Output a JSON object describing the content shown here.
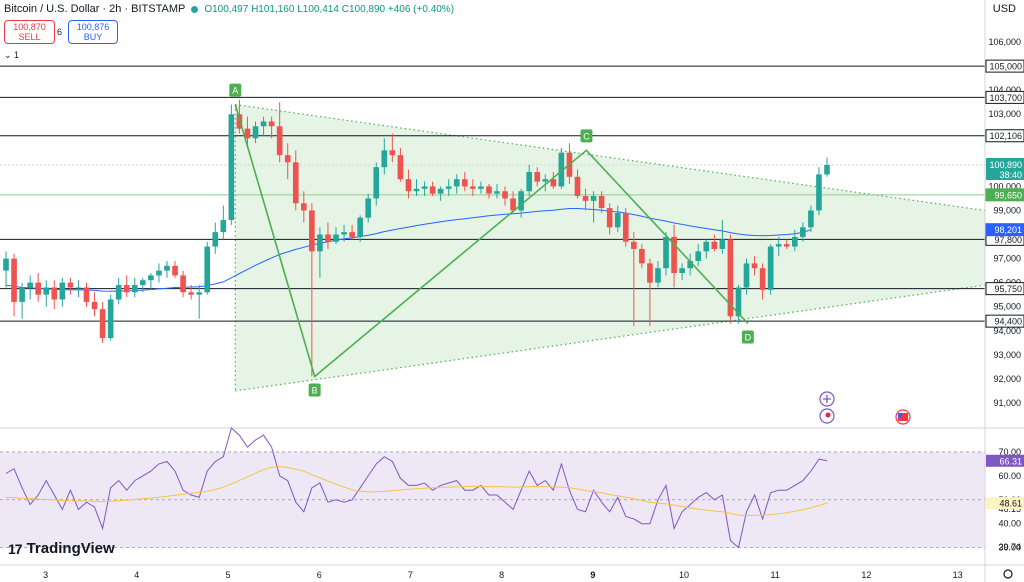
{
  "header": {
    "symbol": "Bitcoin / U.S. Dollar · 2h · BITSTAMP",
    "ohlc_open": "O100,497",
    "ohlc_high": "H101,160",
    "ohlc_low": "L100,414",
    "ohlc_close": "C100,890",
    "ohlc_change": "+406 (+0.40%)"
  },
  "trade": {
    "sell_price": "100,870",
    "sell_label": "SELL",
    "spread": "6",
    "buy_price": "100,876",
    "buy_label": "BUY",
    "collapse_label": "⌄ 1"
  },
  "currency": "USD",
  "brand": "TradingView",
  "colors": {
    "up": "#26a69a",
    "down": "#ef5350",
    "triangle_fill": "#e2f3e2",
    "pattern": "#4caf50",
    "ma": "#2962ff",
    "rsi": "#7e57c2",
    "rsi_ma": "#f5c542",
    "rsi_band": "#ede7f6"
  },
  "chart_data": [
    {
      "type": "candlestick",
      "title": "Bitcoin / U.S. Dollar · 2h · BITSTAMP",
      "ylim": [
        90000,
        107000
      ],
      "xlim": [
        2.5,
        13.3
      ],
      "y_ticks": [
        91000,
        92000,
        93000,
        94000,
        95000,
        96000,
        97000,
        98000,
        99000,
        100000,
        101000,
        102000,
        103000,
        104000,
        106000
      ],
      "y_tick_labels": [
        "91,000",
        "92,000",
        "93,000",
        "94,000",
        "95,000",
        "96,000",
        "97,000",
        "98,000",
        "99,000",
        "100,000",
        "101,000",
        "102,000",
        "103,000",
        "104,000",
        "106,000"
      ],
      "x_ticks": [
        3,
        4,
        5,
        6,
        7,
        8,
        9,
        10,
        11,
        12,
        13
      ],
      "x_tick_labels": [
        "3",
        "4",
        "5",
        "6",
        "7",
        "8",
        "9",
        "10",
        "11",
        "12",
        "13"
      ],
      "x_bold_ticks": [
        9
      ],
      "candles": [
        [
          96500,
          97300,
          95800,
          97000
        ],
        [
          97000,
          97200,
          94600,
          95200
        ],
        [
          95200,
          96000,
          94500,
          95800
        ],
        [
          95800,
          96300,
          95300,
          96000
        ],
        [
          96000,
          96400,
          95200,
          95500
        ],
        [
          95500,
          96100,
          95000,
          95800
        ],
        [
          95800,
          96100,
          94900,
          95300
        ],
        [
          95300,
          96200,
          95000,
          96000
        ],
        [
          96000,
          96200,
          95500,
          95800
        ],
        [
          95800,
          96100,
          95400,
          95800
        ],
        [
          95800,
          96000,
          95000,
          95200
        ],
        [
          95200,
          95600,
          94600,
          94900
        ],
        [
          94900,
          95200,
          93500,
          93700
        ],
        [
          93700,
          95500,
          93600,
          95300
        ],
        [
          95300,
          96200,
          95100,
          95900
        ],
        [
          95900,
          96300,
          95400,
          95600
        ],
        [
          95600,
          96200,
          95400,
          95900
        ],
        [
          95900,
          96200,
          95600,
          96100
        ],
        [
          96100,
          96400,
          95700,
          96300
        ],
        [
          96300,
          96800,
          96000,
          96500
        ],
        [
          96500,
          96900,
          96200,
          96700
        ],
        [
          96700,
          96900,
          96200,
          96300
        ],
        [
          96300,
          96500,
          95400,
          95600
        ],
        [
          95600,
          95900,
          95300,
          95500
        ],
        [
          95500,
          95900,
          94500,
          95600
        ],
        [
          95600,
          97700,
          95500,
          97500
        ],
        [
          97500,
          98500,
          97200,
          98100
        ],
        [
          98100,
          99200,
          97800,
          98600
        ],
        [
          98600,
          103400,
          98400,
          103000
        ],
        [
          103000,
          103600,
          102200,
          102400
        ],
        [
          102400,
          102900,
          101600,
          102000
        ],
        [
          102000,
          102700,
          101800,
          102500
        ],
        [
          102500,
          102900,
          102100,
          102700
        ],
        [
          102700,
          102900,
          102000,
          102500
        ],
        [
          102500,
          103500,
          101000,
          101300
        ],
        [
          101300,
          101800,
          100300,
          101000
        ],
        [
          101000,
          101500,
          99000,
          99300
        ],
        [
          99300,
          99800,
          98500,
          99000
        ],
        [
          99000,
          99300,
          92100,
          97300
        ],
        [
          97300,
          98300,
          96200,
          98000
        ],
        [
          98000,
          98500,
          97400,
          97700
        ],
        [
          97700,
          98300,
          97600,
          98000
        ],
        [
          98000,
          98400,
          97700,
          98100
        ],
        [
          98100,
          98400,
          97800,
          97900
        ],
        [
          97900,
          98800,
          97700,
          98700
        ],
        [
          98700,
          99700,
          98500,
          99500
        ],
        [
          99500,
          101000,
          99200,
          100800
        ],
        [
          100800,
          102000,
          100500,
          101500
        ],
        [
          101500,
          102200,
          101000,
          101300
        ],
        [
          101300,
          101600,
          100200,
          100300
        ],
        [
          100300,
          100700,
          99500,
          99800
        ],
        [
          99800,
          100300,
          99600,
          99900
        ],
        [
          99900,
          100200,
          99600,
          100000
        ],
        [
          100000,
          100200,
          99600,
          99700
        ],
        [
          99700,
          100000,
          99400,
          99900
        ],
        [
          99900,
          100300,
          99600,
          100000
        ],
        [
          100000,
          100500,
          99700,
          100300
        ],
        [
          100300,
          100600,
          99800,
          100000
        ],
        [
          100000,
          100300,
          99600,
          99900
        ],
        [
          99900,
          100200,
          99700,
          100000
        ],
        [
          100000,
          100100,
          99500,
          99700
        ],
        [
          99700,
          100100,
          99500,
          99800
        ],
        [
          99800,
          100000,
          99200,
          99500
        ],
        [
          99500,
          99800,
          98900,
          99000
        ],
        [
          99000,
          99900,
          98700,
          99800
        ],
        [
          99800,
          100900,
          99600,
          100600
        ],
        [
          100600,
          100800,
          100000,
          100200
        ],
        [
          100200,
          100500,
          99800,
          100300
        ],
        [
          100300,
          100600,
          99900,
          100000
        ],
        [
          100000,
          101600,
          99900,
          101400
        ],
        [
          101400,
          101800,
          100100,
          100400
        ],
        [
          100400,
          100700,
          99500,
          99600
        ],
        [
          99600,
          99900,
          99000,
          99400
        ],
        [
          99400,
          99800,
          98500,
          99600
        ],
        [
          99600,
          99800,
          98900,
          99100
        ],
        [
          99100,
          99300,
          98000,
          98300
        ],
        [
          98300,
          99200,
          98100,
          98900
        ],
        [
          98900,
          99100,
          97500,
          97700
        ],
        [
          97700,
          98100,
          94200,
          97400
        ],
        [
          97400,
          97600,
          96600,
          96800
        ],
        [
          96800,
          97000,
          94200,
          96000
        ],
        [
          96000,
          96900,
          95800,
          96600
        ],
        [
          96600,
          98100,
          96300,
          97900
        ],
        [
          97900,
          98400,
          95800,
          96400
        ],
        [
          96400,
          96800,
          96100,
          96600
        ],
        [
          96600,
          97200,
          96300,
          96900
        ],
        [
          96900,
          97600,
          96700,
          97300
        ],
        [
          97300,
          97800,
          97000,
          97700
        ],
        [
          97700,
          98000,
          97300,
          97400
        ],
        [
          97400,
          98600,
          97200,
          97800
        ],
        [
          97800,
          98000,
          94300,
          94600
        ],
        [
          94600,
          95900,
          94300,
          95800
        ],
        [
          95800,
          97000,
          95500,
          96800
        ],
        [
          96800,
          97100,
          96300,
          96600
        ],
        [
          96600,
          96800,
          95300,
          95700
        ],
        [
          95700,
          97600,
          95500,
          97500
        ],
        [
          97500,
          97900,
          97100,
          97600
        ],
        [
          97600,
          97800,
          97400,
          97500
        ],
        [
          97500,
          98200,
          97300,
          97900
        ],
        [
          97900,
          98500,
          97700,
          98300
        ],
        [
          98300,
          99200,
          98100,
          99000
        ],
        [
          99000,
          100800,
          98800,
          100500
        ],
        [
          100500,
          101200,
          100400,
          100890
        ]
      ],
      "ma_values": [
        95900,
        95850,
        95800,
        95780,
        95760,
        95740,
        95720,
        95710,
        95700,
        95700,
        95690,
        95680,
        95650,
        95640,
        95650,
        95660,
        95670,
        95690,
        95710,
        95740,
        95770,
        95800,
        95810,
        95820,
        95830,
        95880,
        95950,
        96030,
        96200,
        96380,
        96550,
        96720,
        96880,
        97030,
        97170,
        97280,
        97380,
        97470,
        97560,
        97640,
        97700,
        97760,
        97820,
        97870,
        97920,
        97970,
        98040,
        98120,
        98190,
        98250,
        98310,
        98370,
        98430,
        98480,
        98530,
        98580,
        98620,
        98660,
        98700,
        98740,
        98780,
        98810,
        98840,
        98860,
        98890,
        98930,
        98960,
        98990,
        99010,
        99050,
        99080,
        99080,
        99060,
        99040,
        99010,
        98970,
        98940,
        98890,
        98830,
        98760,
        98680,
        98620,
        98560,
        98480,
        98420,
        98360,
        98300,
        98250,
        98200,
        98150,
        98080,
        98020,
        97980,
        97960,
        97950,
        97960,
        97980,
        98000,
        98030,
        98090,
        98201
      ],
      "price_lines": [
        105000,
        103700,
        102106,
        97800,
        95750,
        94400
      ],
      "price_line_labels": [
        "105,000",
        "103,700",
        "102,106",
        "97,800",
        "95,750",
        "94,400"
      ],
      "green_line": 99650,
      "green_line_label": "99,650",
      "ma_label": "98,201",
      "last_price": 100890,
      "last_price_label": "100,890",
      "countdown": "38:40",
      "pattern_points": [
        {
          "label": "A",
          "x": 5.08,
          "y": 103400
        },
        {
          "label": "B",
          "x": 5.95,
          "y": 92100
        },
        {
          "label": "C",
          "x": 8.93,
          "y": 101500
        },
        {
          "label": "D",
          "x": 10.7,
          "y": 94300
        }
      ],
      "triangle": {
        "apex": {
          "x": 5.08,
          "y": 103400
        },
        "bottom": {
          "x": 5.08,
          "y": 91500
        },
        "upper_end": {
          "x": 13.3,
          "y": 99000
        },
        "lower_end": {
          "x": 13.3,
          "y": 95900
        }
      }
    },
    {
      "type": "line",
      "series_rsi": [
        61,
        63,
        55,
        48,
        52,
        58,
        52,
        46,
        54,
        46,
        49,
        47,
        38,
        55,
        58,
        54,
        58,
        60,
        62,
        65,
        66,
        62,
        54,
        52,
        51,
        62,
        66,
        68,
        80,
        77,
        72,
        75,
        77,
        72,
        60,
        58,
        49,
        45,
        55,
        57,
        49,
        50,
        49,
        50,
        55,
        60,
        65,
        68,
        66,
        59,
        56,
        56,
        57,
        54,
        56,
        57,
        58,
        54,
        54,
        56,
        52,
        52,
        49,
        46,
        54,
        62,
        56,
        58,
        54,
        65,
        54,
        46,
        45,
        54,
        49,
        45,
        51,
        43,
        42,
        40,
        40,
        50,
        56,
        38,
        45,
        48,
        51,
        53,
        50,
        52,
        33,
        30,
        45,
        52,
        42,
        53,
        54,
        54,
        56,
        58,
        62,
        67,
        66.31
      ],
      "series_ma": [
        51,
        50.9,
        50.7,
        50.5,
        50.3,
        50.1,
        49.9,
        49.7,
        49.6,
        49.5,
        49.5,
        49.4,
        49.3,
        49.4,
        49.6,
        49.8,
        50.1,
        50.4,
        50.7,
        51.1,
        51.5,
        51.9,
        52.3,
        52.7,
        53.1,
        53.6,
        54.3,
        55.2,
        56.7,
        58.1,
        59.6,
        61.1,
        62.6,
        63.6,
        63.9,
        63.5,
        62.8,
        62.0,
        60.5,
        59.2,
        57.8,
        56.5,
        55.3,
        54.2,
        53.6,
        53.3,
        53.3,
        53.5,
        53.8,
        54.1,
        54.4,
        54.6,
        54.8,
        55.0,
        55.2,
        55.3,
        55.4,
        55.5,
        55.6,
        55.6,
        55.5,
        55.5,
        55.4,
        55.3,
        55.3,
        55.5,
        55.5,
        55.5,
        55.3,
        55.3,
        55.0,
        54.5,
        53.9,
        53.4,
        52.9,
        52.2,
        51.7,
        51.1,
        50.4,
        49.7,
        49.0,
        48.6,
        48.3,
        47.8,
        47.2,
        46.6,
        46.1,
        45.7,
        45.3,
        45.0,
        44.3,
        43.6,
        43.4,
        43.5,
        43.5,
        43.8,
        44.2,
        44.6,
        45.2,
        45.9,
        46.6,
        47.6,
        48.61
      ],
      "ylim": [
        24,
        80
      ],
      "y_ticks": [
        70,
        60,
        50,
        46.15,
        40,
        30
      ],
      "y_tick_labels": [
        "70.00",
        "60.00",
        "50.00",
        "46.15",
        "40.00",
        "30.00"
      ],
      "band": [
        30,
        70
      ],
      "rsi_label": "66.31",
      "rsi_ma_label": "48.61",
      "min_label": "29.74"
    }
  ]
}
